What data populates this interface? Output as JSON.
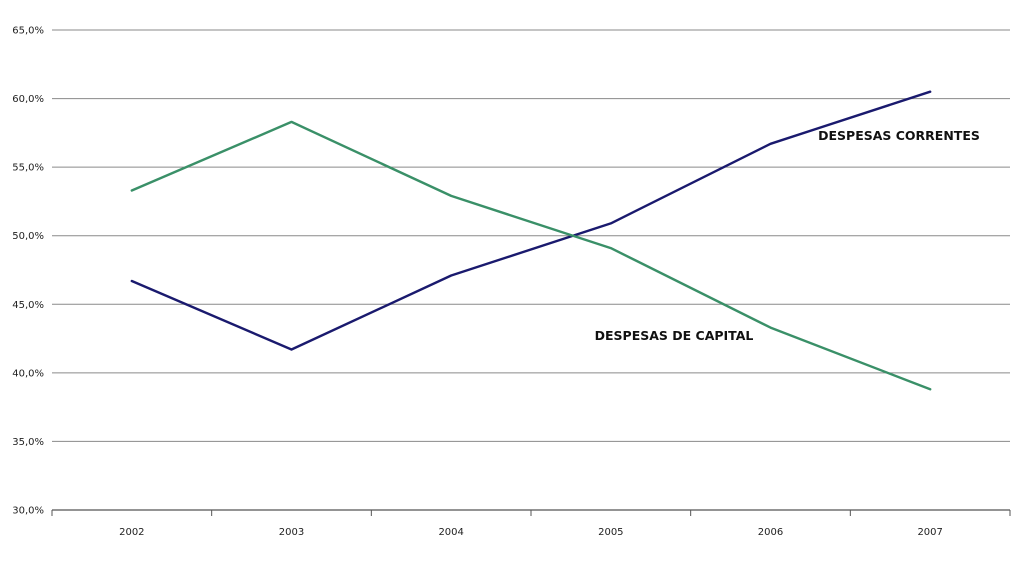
{
  "chart_data": {
    "type": "line",
    "title": "",
    "xlabel": "",
    "ylabel": "",
    "categories": [
      "2002",
      "2003",
      "2004",
      "2005",
      "2006",
      "2007"
    ],
    "y_ticks": [
      "30,0%",
      "35,0%",
      "40,0%",
      "45,0%",
      "50,0%",
      "55,0%",
      "60,0%",
      "65,0%"
    ],
    "ylim": [
      30,
      65
    ],
    "grid": true,
    "legend": "none",
    "series": [
      {
        "name": "DESPESAS CORRENTES",
        "color": "#1a1a6e",
        "values": [
          46.7,
          41.7,
          47.1,
          50.9,
          56.7,
          60.5
        ]
      },
      {
        "name": "DESPESAS DE CAPITAL",
        "color": "#3a9068",
        "values": [
          53.3,
          58.3,
          52.9,
          49.1,
          43.3,
          38.8
        ]
      }
    ]
  }
}
